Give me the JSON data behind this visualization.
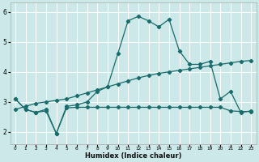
{
  "xlabel": "Humidex (Indice chaleur)",
  "bg_color": "#cce8e8",
  "grid_color": "#ffffff",
  "line_color": "#1a6b6b",
  "xlim": [
    -0.5,
    23.5
  ],
  "ylim": [
    1.6,
    6.3
  ],
  "yticks": [
    2,
    3,
    4,
    5,
    6
  ],
  "xtick_labels": [
    "0",
    "1",
    "2",
    "3",
    "4",
    "5",
    "6",
    "7",
    "8",
    "9",
    "10",
    "11",
    "12",
    "13",
    "14",
    "15",
    "16",
    "17",
    "18",
    "19",
    "20",
    "21",
    "22",
    "23"
  ],
  "line1_x": [
    0,
    1,
    2,
    3,
    4,
    5,
    6,
    7,
    8,
    9,
    10,
    11,
    12,
    13,
    14,
    15,
    16,
    17,
    18,
    19,
    20,
    21,
    22,
    23
  ],
  "line1_y": [
    3.1,
    2.75,
    2.65,
    2.7,
    1.95,
    2.8,
    2.82,
    2.82,
    2.82,
    2.82,
    2.82,
    2.82,
    2.82,
    2.82,
    2.82,
    2.82,
    2.82,
    2.82,
    2.82,
    2.82,
    2.82,
    2.7,
    2.68,
    2.68
  ],
  "line2_x": [
    0,
    1,
    2,
    3,
    4,
    5,
    6,
    7,
    8,
    9,
    10,
    11,
    12,
    13,
    14,
    15,
    16,
    17,
    18,
    19,
    20,
    21,
    22,
    23
  ],
  "line2_y": [
    3.1,
    2.75,
    2.65,
    2.75,
    1.95,
    2.85,
    2.9,
    3.0,
    3.35,
    3.5,
    4.6,
    5.7,
    5.85,
    5.7,
    5.5,
    5.75,
    4.7,
    4.25,
    4.25,
    4.35,
    3.1,
    3.35,
    2.65,
    2.7
  ],
  "line3_x": [
    0,
    1,
    2,
    3,
    4,
    5,
    6,
    7,
    8,
    9,
    10,
    11,
    12,
    13,
    14,
    15,
    16,
    17,
    18,
    19,
    20,
    21,
    22,
    23
  ],
  "line3_y": [
    2.75,
    2.85,
    2.95,
    3.0,
    3.05,
    3.1,
    3.2,
    3.3,
    3.4,
    3.5,
    3.6,
    3.7,
    3.8,
    3.88,
    3.95,
    4.0,
    4.05,
    4.1,
    4.15,
    4.2,
    4.25,
    4.3,
    4.35,
    4.38
  ]
}
